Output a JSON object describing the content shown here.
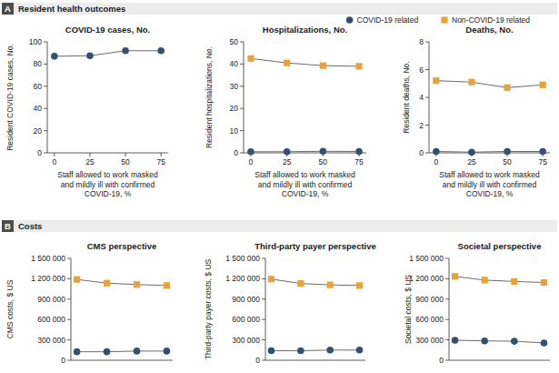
{
  "chart_data": [
    {
      "type": "line",
      "title": "COVID-19 cases, No.",
      "x_label": "Staff allowed to work masked\nand mildly ill with confirmed\nCOVID-19, %",
      "y_label": "Resident COVID-19 cases, No.",
      "x": [
        0,
        25,
        50,
        75
      ],
      "xlim": [
        -5,
        80
      ],
      "xticks": [
        0,
        25,
        50,
        75
      ],
      "ylim": [
        0,
        100
      ],
      "yticks": [
        0,
        20,
        40,
        60,
        80,
        100
      ],
      "grid": false,
      "series": [
        {
          "name": "COVID-19 related",
          "color": "#34506e",
          "marker": "circle",
          "values": [
            87,
            87.5,
            92,
            92
          ]
        }
      ]
    },
    {
      "type": "line",
      "title": "Hospitalizations, No.",
      "x_label": "Staff allowed to work masked\nand mildly ill with confirmed\nCOVID-19, %",
      "y_label": "Resident hospitalizations, No.",
      "x": [
        0,
        25,
        50,
        75
      ],
      "xlim": [
        -5,
        80
      ],
      "xticks": [
        0,
        25,
        50,
        75
      ],
      "ylim": [
        0,
        50
      ],
      "yticks": [
        0,
        10,
        20,
        30,
        40,
        50
      ],
      "grid": false,
      "legend": "top-right",
      "series": [
        {
          "name": "COVID-19 related",
          "color": "#34506e",
          "marker": "circle",
          "values": [
            0.5,
            0.5,
            0.7,
            0.6
          ]
        },
        {
          "name": "Non-COVID-19 related",
          "color": "#e9a23b",
          "marker": "square",
          "values": [
            42.5,
            40.5,
            39.3,
            39.0
          ]
        }
      ]
    },
    {
      "type": "line",
      "title": "Deaths, No.",
      "x_label": "Staff allowed to work masked\nand mildly ill with confirmed\nCOVID-19, %",
      "y_label": "Resident deaths, No.",
      "x": [
        0,
        25,
        50,
        75
      ],
      "xlim": [
        -5,
        80
      ],
      "xticks": [
        0,
        25,
        50,
        75
      ],
      "ylim": [
        0,
        8
      ],
      "yticks": [
        0,
        2,
        4,
        6,
        8
      ],
      "grid": false,
      "series": [
        {
          "name": "COVID-19 related",
          "color": "#34506e",
          "marker": "circle",
          "values": [
            0.1,
            0.05,
            0.1,
            0.1
          ]
        },
        {
          "name": "Non-COVID-19 related",
          "color": "#e9a23b",
          "marker": "square",
          "values": [
            5.2,
            5.1,
            4.7,
            4.9
          ]
        }
      ]
    },
    {
      "type": "line",
      "title": "CMS perspective",
      "y_label": "CMS costs, $ US",
      "x": [
        0,
        25,
        50,
        75
      ],
      "xlim": [
        -5,
        80
      ],
      "ylim": [
        0,
        1500000
      ],
      "tick_labels": "y",
      "grid": false,
      "yticks": [
        0,
        {
          "value": 300000,
          "label": "300 000"
        },
        {
          "value": 600000,
          "label": "600 000"
        },
        {
          "value": 900000,
          "label": "900 000"
        },
        {
          "value": 1200000,
          "label": "1 200 000"
        },
        {
          "value": 1500000,
          "label": "1 500 000"
        }
      ],
      "series": [
        {
          "name": "COVID-19 related",
          "color": "#34506e",
          "marker": "circle",
          "values": [
            125000,
            125000,
            135000,
            135000
          ]
        },
        {
          "name": "Non-COVID-19 related",
          "color": "#e9a23b",
          "marker": "square",
          "values": [
            1190000,
            1135000,
            1115000,
            1100000
          ]
        }
      ]
    },
    {
      "type": "line",
      "title": "Third-party payer perspective",
      "y_label": "Third-party payer costs, $ US",
      "x": [
        0,
        25,
        50,
        75
      ],
      "xlim": [
        -5,
        80
      ],
      "ylim": [
        0,
        1500000
      ],
      "tick_labels": "y",
      "grid": false,
      "yticks": [
        0,
        {
          "value": 300000,
          "label": "300 000"
        },
        {
          "value": 600000,
          "label": "600 000"
        },
        {
          "value": 900000,
          "label": "900 000"
        },
        {
          "value": 1200000,
          "label": "1 200 000"
        },
        {
          "value": 1500000,
          "label": "1 500 000"
        }
      ],
      "series": [
        {
          "name": "COVID-19 related",
          "color": "#34506e",
          "marker": "circle",
          "values": [
            140000,
            140000,
            150000,
            150000
          ]
        },
        {
          "name": "Non-COVID-19 related",
          "color": "#e9a23b",
          "marker": "square",
          "values": [
            1195000,
            1130000,
            1110000,
            1100000
          ]
        }
      ]
    },
    {
      "type": "line",
      "title": "Societal perspective",
      "y_label": "Societal costs, $ US",
      "x": [
        0,
        25,
        50,
        75
      ],
      "xlim": [
        -5,
        80
      ],
      "ylim": [
        0,
        1500000
      ],
      "tick_labels": "y",
      "grid": false,
      "yticks": [
        0,
        {
          "value": 300000,
          "label": "300 000"
        },
        {
          "value": 600000,
          "label": "600 000"
        },
        {
          "value": 900000,
          "label": "900 000"
        },
        {
          "value": 1200000,
          "label": "1 200 000"
        },
        {
          "value": 1500000,
          "label": "1 500 000"
        }
      ],
      "series": [
        {
          "name": "COVID-19 related",
          "color": "#34506e",
          "marker": "circle",
          "values": [
            295000,
            285000,
            280000,
            255000
          ]
        },
        {
          "name": "Non-COVID-19 related",
          "color": "#e9a23b",
          "marker": "square",
          "values": [
            1235000,
            1180000,
            1160000,
            1145000
          ]
        }
      ]
    }
  ],
  "sections": [
    {
      "label": "A",
      "title": "Resident health outcomes"
    },
    {
      "label": "B",
      "title": "Costs"
    }
  ]
}
